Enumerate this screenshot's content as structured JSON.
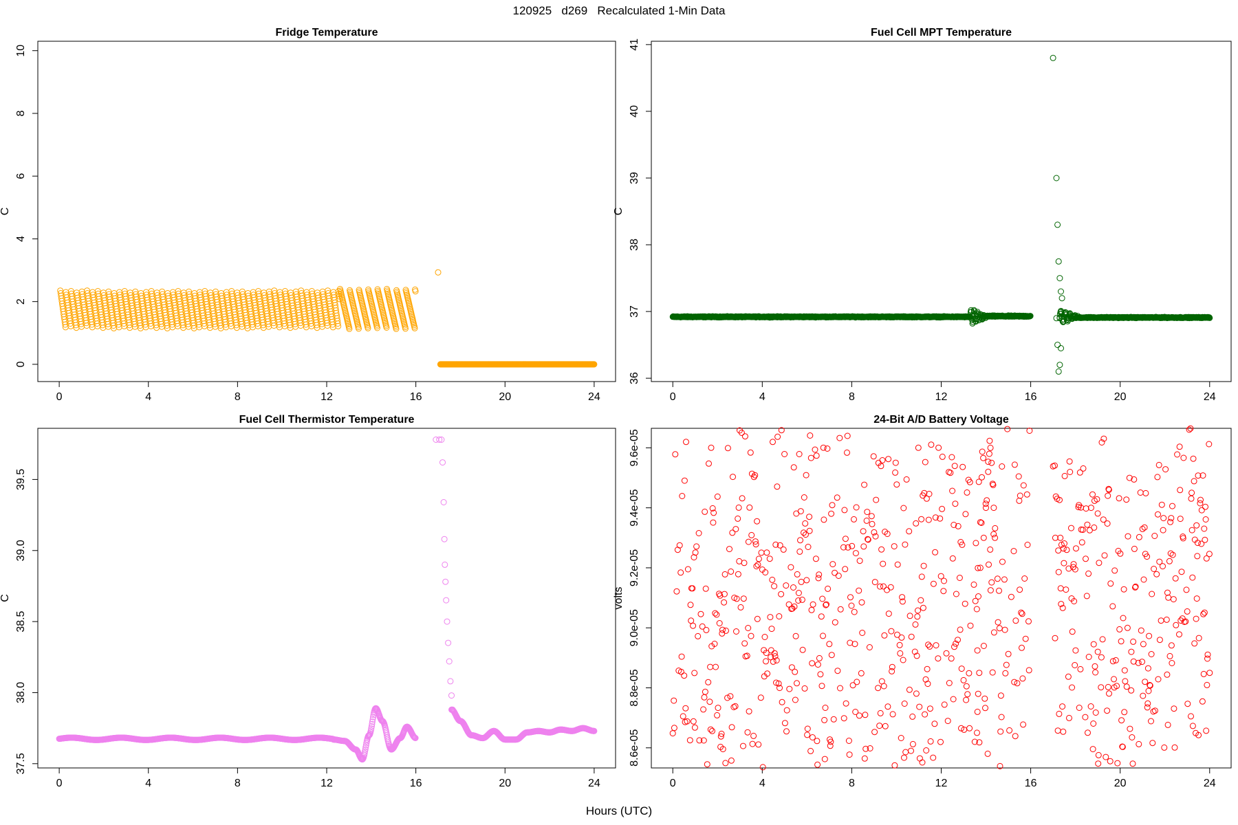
{
  "page_title": "120925   d269   Recalculated 1-Min Data",
  "common_xlabel": "Hours (UTC)",
  "chart_data": [
    {
      "type": "scatter",
      "id": "fridge",
      "title": "Fridge Temperature",
      "ylabel": "C",
      "xlabel": "Hours (UTC)",
      "color": "#FFA500",
      "xlim": [
        -0.96,
        24.96
      ],
      "ylim": [
        -0.55,
        10.3
      ],
      "xticks": [
        0,
        4,
        8,
        12,
        16,
        20,
        24
      ],
      "yticks": [
        0,
        2,
        4,
        6,
        8,
        10
      ],
      "ytick_labels": [
        "0",
        "2",
        "4",
        "6",
        "8",
        "10"
      ],
      "segments": [
        {
          "kind": "sawtooth",
          "x_start": 0.05,
          "x_end": 12.6,
          "period": 0.24,
          "y_low": 1.15,
          "y_high": 2.35
        },
        {
          "kind": "sawtooth",
          "x_start": 12.6,
          "x_end": 16.0,
          "period": 0.42,
          "y_low": 1.12,
          "y_high": 2.4
        },
        {
          "kind": "points",
          "x": [
            17.0
          ],
          "y": [
            2.93
          ]
        },
        {
          "kind": "flat",
          "x_start": 17.1,
          "x_end": 24.0,
          "y": 0.0
        }
      ]
    },
    {
      "type": "scatter",
      "id": "mpt",
      "title": "Fuel Cell MPT Temperature",
      "ylabel": "C",
      "xlabel": "Hours (UTC)",
      "color": "#006400",
      "xlim": [
        -0.96,
        24.96
      ],
      "ylim": [
        35.95,
        41.05
      ],
      "xticks": [
        0,
        4,
        8,
        12,
        16,
        20,
        24
      ],
      "yticks": [
        36,
        37,
        38,
        39,
        40,
        41
      ],
      "ytick_labels": [
        "36",
        "37",
        "38",
        "39",
        "40",
        "41"
      ],
      "segments": [
        {
          "kind": "noise",
          "x_start": 0.0,
          "x_end": 13.3,
          "y": 36.92,
          "amp": 0.01
        },
        {
          "kind": "ringing",
          "x_start": 13.3,
          "x_end": 14.0,
          "y": 36.92,
          "amp": 0.3,
          "freq": 10
        },
        {
          "kind": "noise",
          "x_start": 14.0,
          "x_end": 16.0,
          "y": 36.93,
          "amp": 0.012
        },
        {
          "kind": "points",
          "x": [
            17.0,
            17.15,
            17.2,
            17.25,
            17.3,
            17.35,
            17.4,
            17.2,
            17.25,
            17.3,
            17.35,
            17.15,
            17.3
          ],
          "y": [
            40.8,
            39.0,
            38.3,
            37.75,
            37.5,
            37.3,
            37.2,
            36.5,
            36.1,
            36.2,
            36.45,
            36.9,
            36.9
          ]
        },
        {
          "kind": "ringing",
          "x_start": 17.3,
          "x_end": 18.1,
          "y": 36.92,
          "amp": 0.25,
          "freq": 8
        },
        {
          "kind": "noise",
          "x_start": 18.1,
          "x_end": 24.0,
          "y": 36.91,
          "amp": 0.01
        }
      ]
    },
    {
      "type": "scatter",
      "id": "thermistor",
      "title": "Fuel Cell Thermistor Temperature",
      "ylabel": "C",
      "xlabel": "Hours (UTC)",
      "color": "#EE82EE",
      "xlim": [
        -0.96,
        24.96
      ],
      "ylim": [
        37.47,
        39.86
      ],
      "xticks": [
        0,
        4,
        8,
        12,
        16,
        20,
        24
      ],
      "yticks": [
        37.5,
        38.0,
        38.5,
        39.0,
        39.5
      ],
      "ytick_labels": [
        "37.5",
        "38.0",
        "38.5",
        "39.0",
        "39.5"
      ],
      "segments": [
        {
          "kind": "wave",
          "x_start": 0.0,
          "x_end": 12.3,
          "y": 37.675,
          "amp": 0.008,
          "freq": 0.9
        },
        {
          "kind": "oscill",
          "x_start": 12.3,
          "x_end": 16.0,
          "points": [
            [
              12.3,
              37.67
            ],
            [
              12.8,
              37.66
            ],
            [
              13.3,
              37.6
            ],
            [
              13.6,
              37.53
            ],
            [
              13.9,
              37.7
            ],
            [
              14.2,
              37.89
            ],
            [
              14.5,
              37.8
            ],
            [
              14.9,
              37.6
            ],
            [
              15.3,
              37.68
            ],
            [
              15.6,
              37.76
            ],
            [
              16.0,
              37.68
            ]
          ]
        },
        {
          "kind": "points",
          "x": [
            16.9,
            17.05,
            17.15,
            17.2,
            17.25,
            17.28,
            17.3,
            17.33,
            17.36,
            17.4,
            17.45,
            17.5,
            17.55,
            17.6,
            17.65
          ],
          "y": [
            39.78,
            39.78,
            39.78,
            39.62,
            39.34,
            39.08,
            38.9,
            38.78,
            38.65,
            38.5,
            38.35,
            38.22,
            38.08,
            37.98,
            37.88
          ]
        },
        {
          "kind": "oscill",
          "x_start": 17.6,
          "x_end": 24.0,
          "points": [
            [
              17.6,
              37.88
            ],
            [
              18.0,
              37.8
            ],
            [
              18.5,
              37.7
            ],
            [
              19.0,
              37.68
            ],
            [
              19.5,
              37.73
            ],
            [
              20.0,
              37.67
            ],
            [
              20.5,
              37.67
            ],
            [
              21.0,
              37.72
            ],
            [
              21.5,
              37.73
            ],
            [
              22.0,
              37.72
            ],
            [
              22.5,
              37.74
            ],
            [
              23.0,
              37.73
            ],
            [
              23.5,
              37.75
            ],
            [
              24.0,
              37.73
            ]
          ]
        }
      ]
    },
    {
      "type": "scatter",
      "id": "battery",
      "title": "24-Bit A/D Battery Voltage",
      "ylabel": "volts",
      "xlabel": "Hours (UTC)",
      "color": "#FF0000",
      "xlim": [
        -0.96,
        24.96
      ],
      "ylim": [
        8.533e-05,
        9.665e-05
      ],
      "xticks": [
        0,
        4,
        8,
        12,
        16,
        20,
        24
      ],
      "yticks": [
        8.6e-05,
        8.8e-05,
        9e-05,
        9.2e-05,
        9.4e-05,
        9.6e-05
      ],
      "ytick_labels": [
        "8.6e-05",
        "8.8e-05",
        "9.0e-05",
        "9.2e-05",
        "9.4e-05",
        "9.6e-05"
      ],
      "segments": [
        {
          "kind": "scatter_band",
          "x_start": 0.0,
          "x_end": 13.0,
          "y_center_start": 8.98e-05,
          "y_center_end": 9.05e-05,
          "spread": 1.5e-05,
          "step": 0.022
        },
        {
          "kind": "points",
          "x": [
            13.5,
            13.6,
            13.62,
            13.65,
            13.7,
            13.75,
            13.8,
            13.9,
            14.0,
            14.1,
            14.15,
            14.2,
            14.25,
            14.3,
            14.35,
            14.4
          ],
          "y": [
            8.62e-05,
            8.65e-05,
            8.72e-05,
            8.78e-05,
            8.85e-05,
            9.2e-05,
            9.35e-05,
            9.3e-05,
            9.4e-05,
            9.52e-05,
            9.58e-05,
            9.6e-05,
            9.55e-05,
            9.48e-05,
            9.4e-05,
            9.3e-05
          ]
        },
        {
          "kind": "scatter_band",
          "x_start": 13.0,
          "x_end": 16.0,
          "y_center_start": 9.05e-05,
          "y_center_end": 9.08e-05,
          "spread": 2e-05,
          "step": 0.022
        },
        {
          "kind": "scatter_band",
          "x_start": 17.0,
          "x_end": 21.0,
          "y_center_start": 9.12e-05,
          "y_center_end": 9.2e-05,
          "spread": 1.8e-05,
          "step": 0.018
        },
        {
          "kind": "scatter_band",
          "x_start": 21.0,
          "x_end": 24.0,
          "y_center_start": 9.22e-05,
          "y_center_end": 9.05e-05,
          "spread": 1.7e-05,
          "step": 0.018
        },
        {
          "kind": "points",
          "x": [
            17.1,
            18.7,
            19.0,
            19.5,
            20.5,
            24.0,
            8.6,
            6.1
          ],
          "y": [
            9.3e-05,
            9.4e-05,
            8.92e-05,
            9.46e-05,
            8.92e-05,
            8.85e-05,
            8.71e-05,
            9.37e-05
          ]
        }
      ]
    }
  ]
}
